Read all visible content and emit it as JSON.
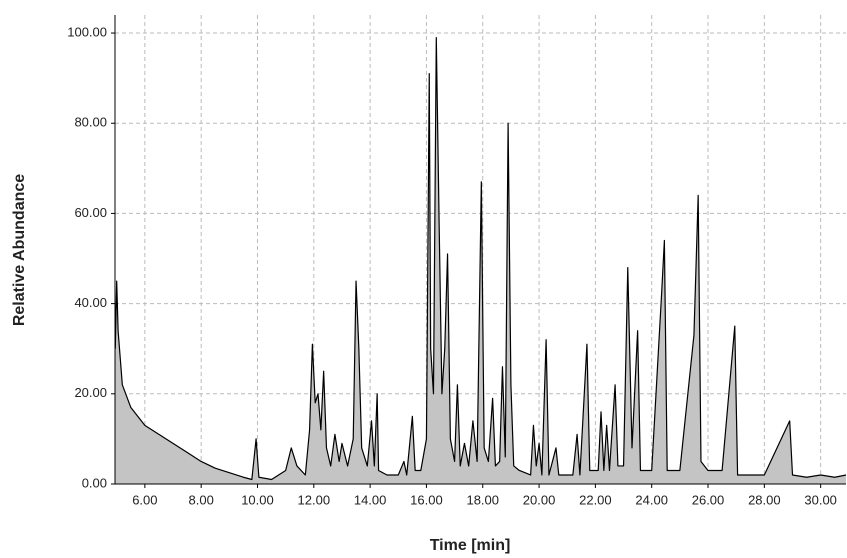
{
  "chart_data": {
    "type": "line",
    "x_label": "Time [min]",
    "y_label": "Relative Abundance",
    "color": "#000000",
    "fill": "#c4c4c4",
    "grid": true,
    "xlim": [
      4.94,
      30.9
    ],
    "ylim": [
      0,
      104
    ],
    "xticks": [
      {
        "value": 6,
        "label": "6.00"
      },
      {
        "value": 8,
        "label": "8.00"
      },
      {
        "value": 10,
        "label": "10.00"
      },
      {
        "value": 12,
        "label": "12.00"
      },
      {
        "value": 14,
        "label": "14.00"
      },
      {
        "value": 16,
        "label": "16.00"
      },
      {
        "value": 18,
        "label": "18.00"
      },
      {
        "value": 20,
        "label": "20.00"
      },
      {
        "value": 22,
        "label": "22.00"
      },
      {
        "value": 24,
        "label": "24.00"
      },
      {
        "value": 26,
        "label": "26.00"
      },
      {
        "value": 28,
        "label": "28.00"
      },
      {
        "value": 30,
        "label": "30.00"
      }
    ],
    "yticks": [
      {
        "value": 0,
        "label": "0.00"
      },
      {
        "value": 20,
        "label": "20.00"
      },
      {
        "value": 40,
        "label": "40.00"
      },
      {
        "value": 60,
        "label": "60.00"
      },
      {
        "value": 80,
        "label": "80.00"
      },
      {
        "value": 100,
        "label": "100.00"
      }
    ],
    "x": [
      4.95,
      5.0,
      5.05,
      5.2,
      5.5,
      6.0,
      6.5,
      7.0,
      7.5,
      8.0,
      8.5,
      9.0,
      9.5,
      9.8,
      9.95,
      10.05,
      10.5,
      11.0,
      11.2,
      11.4,
      11.7,
      11.85,
      11.95,
      12.05,
      12.15,
      12.25,
      12.35,
      12.45,
      12.6,
      12.75,
      12.9,
      13.0,
      13.2,
      13.4,
      13.5,
      13.6,
      13.7,
      13.9,
      14.05,
      14.15,
      14.25,
      14.3,
      14.6,
      15.0,
      15.2,
      15.3,
      15.5,
      15.6,
      15.8,
      16.0,
      16.1,
      16.15,
      16.25,
      16.35,
      16.45,
      16.55,
      16.65,
      16.75,
      16.85,
      17.0,
      17.1,
      17.2,
      17.35,
      17.5,
      17.65,
      17.8,
      17.95,
      18.05,
      18.2,
      18.35,
      18.45,
      18.6,
      18.7,
      18.8,
      18.9,
      19.0,
      19.1,
      19.3,
      19.7,
      19.8,
      19.9,
      20.0,
      20.1,
      20.25,
      20.35,
      20.6,
      20.7,
      21.2,
      21.35,
      21.45,
      21.7,
      21.8,
      22.1,
      22.2,
      22.3,
      22.4,
      22.5,
      22.7,
      22.8,
      23.0,
      23.15,
      23.3,
      23.5,
      23.6,
      24.0,
      24.35,
      24.45,
      24.55,
      25.0,
      25.5,
      25.65,
      25.75,
      26.0,
      26.5,
      26.95,
      27.05,
      28.0,
      28.9,
      29.0,
      29.5,
      30.0,
      30.5,
      30.9
    ],
    "values": [
      30,
      45,
      34,
      22,
      17,
      13,
      11,
      9,
      7,
      5,
      3.5,
      2.5,
      1.5,
      1,
      10,
      1.5,
      1,
      3,
      8,
      4,
      2,
      12,
      31,
      18,
      20,
      12,
      25,
      8,
      4,
      11,
      5,
      9,
      4,
      10,
      45,
      30,
      8,
      4,
      14,
      4,
      20,
      3,
      2,
      2,
      5,
      2,
      15,
      3,
      3,
      10,
      91,
      30,
      20,
      99,
      58,
      20,
      30,
      51,
      10,
      5,
      22,
      4,
      9,
      4,
      14,
      5,
      67,
      8,
      5,
      19,
      4,
      5,
      26,
      6,
      80,
      22,
      4,
      3,
      2,
      13,
      4,
      9,
      2,
      32,
      2,
      8,
      2,
      2,
      11,
      2,
      31,
      3,
      3,
      16,
      3,
      13,
      3,
      22,
      4,
      4,
      48,
      8,
      34,
      3,
      3,
      42,
      54,
      3,
      3,
      33,
      64,
      5,
      3,
      3,
      35,
      2,
      2,
      14,
      2,
      1.5,
      2,
      1.5,
      2
    ]
  }
}
